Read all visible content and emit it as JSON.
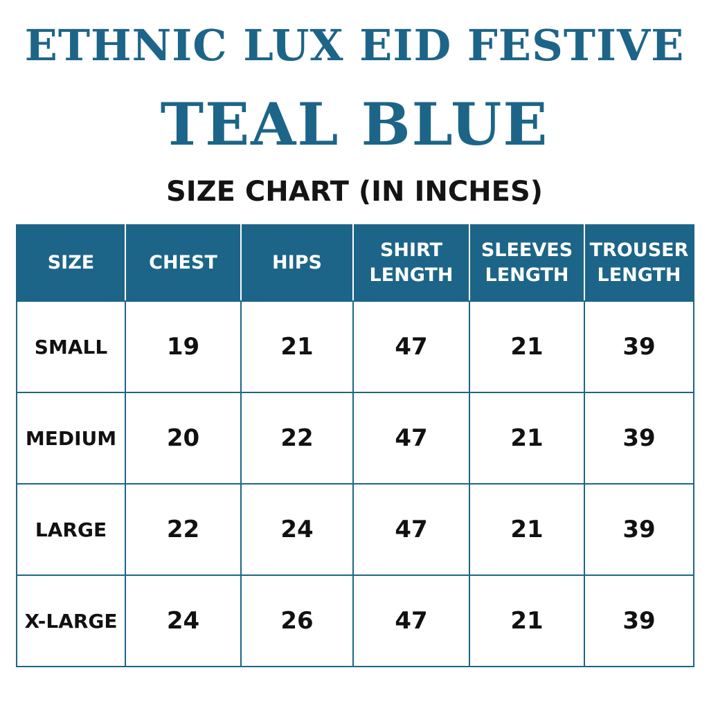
{
  "title": {
    "line1": "ETHNIC LUX EID FESTIVE",
    "line2": "TEAL BLUE"
  },
  "subtitle": "SIZE CHART (IN INCHES)",
  "colors": {
    "accent": "#1d6588",
    "text": "#111111",
    "background": "#ffffff"
  },
  "table": {
    "headers": [
      "SIZE",
      "CHEST",
      "HIPS",
      "SHIRT\nLENGTH",
      "SLEEVES\nLENGTH",
      "TROUSER\nLENGTH"
    ],
    "rows": [
      [
        "SMALL",
        "19",
        "21",
        "47",
        "21",
        "39"
      ],
      [
        "MEDIUM",
        "20",
        "22",
        "47",
        "21",
        "39"
      ],
      [
        "LARGE",
        "22",
        "24",
        "47",
        "21",
        "39"
      ],
      [
        "X-LARGE",
        "24",
        "26",
        "47",
        "21",
        "39"
      ]
    ]
  }
}
